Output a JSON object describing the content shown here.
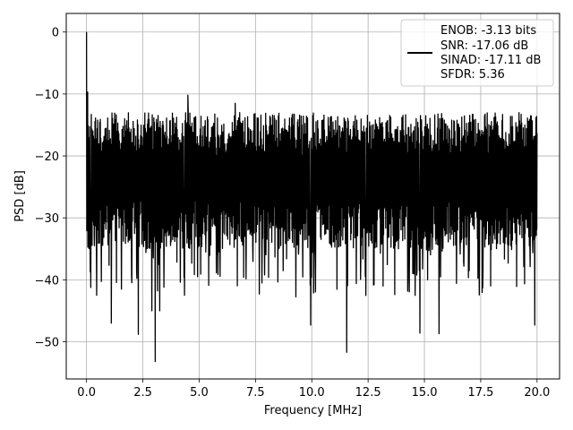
{
  "chart_data": {
    "type": "line",
    "xlabel": "Frequency [MHz]",
    "ylabel": "PSD [dB]",
    "xlim": [
      -0.9,
      21.0
    ],
    "ylim": [
      -56,
      3
    ],
    "xticks": [
      0.0,
      2.5,
      5.0,
      7.5,
      10.0,
      12.5,
      15.0,
      17.5,
      20.0
    ],
    "xtick_labels": [
      "0.0",
      "2.5",
      "5.0",
      "7.5",
      "10.0",
      "12.5",
      "15.0",
      "17.5",
      "20.0"
    ],
    "yticks": [
      0,
      -10,
      -20,
      -30,
      -40,
      -50
    ],
    "ytick_labels": [
      "0",
      "−10",
      "−20",
      "−30",
      "−40",
      "−50"
    ],
    "grid": true,
    "legend_position": "top-right",
    "legend_entries": [
      "ENOB: -3.13 bits",
      "SNR: -17.06 dB",
      "SINAD: -17.11 dB",
      "SFDR: 5.36"
    ],
    "series_color": "#000000",
    "series": [
      {
        "x_start": 0.0,
        "x_end": 20.0,
        "noise_floor_mean": -24,
        "noise_top_typical": -15,
        "noise_bottom_typical": -33,
        "peaks": [
          {
            "x": 0.0,
            "y": 0.0
          },
          {
            "x": 0.05,
            "y": -9.7
          },
          {
            "x": 4.5,
            "y": -10.2
          },
          {
            "x": 6.6,
            "y": -11.5
          }
        ],
        "troughs": [
          {
            "x": 0.35,
            "y": -34.5
          },
          {
            "x": 0.45,
            "y": -42.5
          },
          {
            "x": 1.1,
            "y": -47.0
          },
          {
            "x": 1.55,
            "y": -41.5
          },
          {
            "x": 2.3,
            "y": -48.8
          },
          {
            "x": 2.9,
            "y": -45.0
          },
          {
            "x": 3.05,
            "y": -53.2
          },
          {
            "x": 3.25,
            "y": -45.0
          },
          {
            "x": 4.35,
            "y": -42.5
          },
          {
            "x": 9.95,
            "y": -47.3
          },
          {
            "x": 11.55,
            "y": -51.7
          },
          {
            "x": 14.8,
            "y": -48.6
          },
          {
            "x": 15.65,
            "y": -48.7
          },
          {
            "x": 19.9,
            "y": -47.3
          }
        ]
      }
    ]
  }
}
